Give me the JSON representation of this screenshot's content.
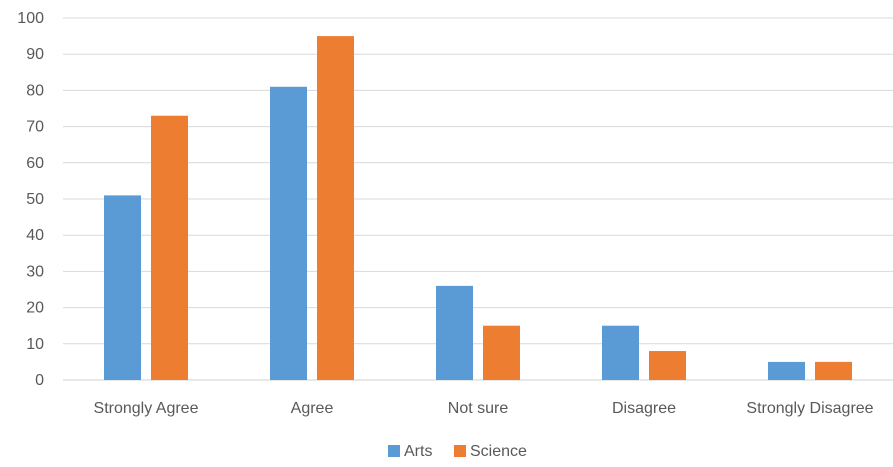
{
  "chart_data": {
    "type": "bar",
    "title": "",
    "xlabel": "",
    "ylabel": "",
    "ylim": [
      0,
      100
    ],
    "y_ticks": [
      "0",
      "10",
      "20",
      "30",
      "40",
      "50",
      "60",
      "70",
      "80",
      "90",
      "100"
    ],
    "y_tick_values": [
      0,
      10,
      20,
      30,
      40,
      50,
      60,
      70,
      80,
      90,
      100
    ],
    "categories": [
      "Strongly Agree",
      "Agree",
      "Not sure",
      "Disagree",
      "Strongly Disagree"
    ],
    "series": [
      {
        "name": "Arts",
        "color": "#5B9BD5",
        "values": [
          51,
          81,
          26,
          15,
          5
        ]
      },
      {
        "name": "Science",
        "color": "#ED7D31",
        "values": [
          73,
          95,
          15,
          8,
          5
        ]
      }
    ],
    "grid": true,
    "legend_position": "bottom-center"
  }
}
